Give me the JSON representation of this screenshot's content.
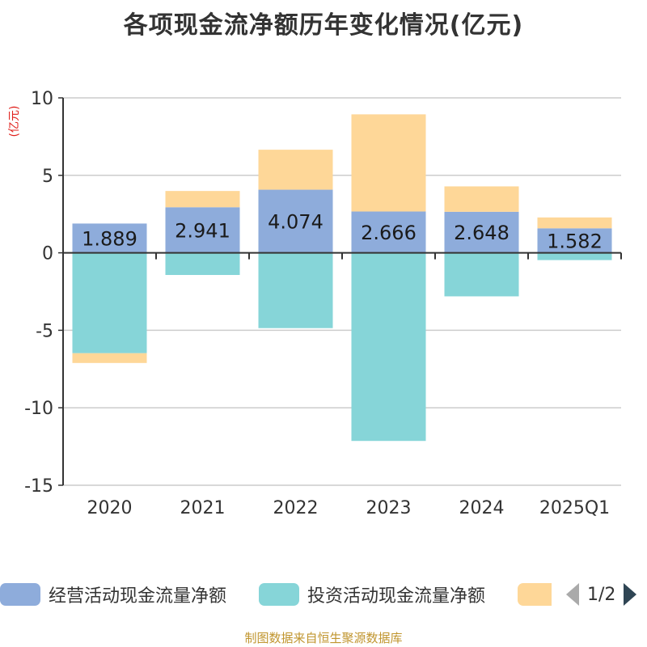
{
  "title": "各项现金流净额历年变化情况(亿元)",
  "unit_label": "(亿元)",
  "legend": {
    "items": [
      {
        "label": "经营活动现金流量净额",
        "color": "#8eacdb"
      },
      {
        "label": "投资活动现金流量净额",
        "color": "#86d5d8"
      },
      {
        "label": "",
        "color": "#fed798"
      }
    ],
    "page": "1/2"
  },
  "source": "制图数据来自恒生聚源数据库",
  "chart_data": {
    "type": "bar",
    "stacked": true,
    "title": "各项现金流净额历年变化情况(亿元)",
    "ylabel": "(亿元)",
    "xlabel": "",
    "ylim": [
      -15,
      10
    ],
    "yticks": [
      10,
      5,
      0,
      -5,
      -10,
      -15
    ],
    "categories": [
      "2020",
      "2021",
      "2022",
      "2023",
      "2024",
      "2025Q1"
    ],
    "grid": true,
    "legend_position": "bottom",
    "series": [
      {
        "name": "经营活动现金流量净额",
        "color": "#8eacdb",
        "values": [
          1.889,
          2.941,
          4.074,
          2.666,
          2.648,
          1.582
        ],
        "labels": [
          "1.889",
          "2.941",
          "4.074",
          "2.666",
          "2.648",
          "1.582"
        ]
      },
      {
        "name": "投资活动现金流量净额",
        "color": "#86d5d8",
        "values": [
          -6.48,
          -1.43,
          -4.86,
          -12.14,
          -2.81,
          -0.47
        ]
      },
      {
        "name": "",
        "color": "#fed798",
        "values": [
          -0.63,
          1.05,
          2.58,
          6.27,
          1.64,
          0.7
        ]
      }
    ]
  }
}
